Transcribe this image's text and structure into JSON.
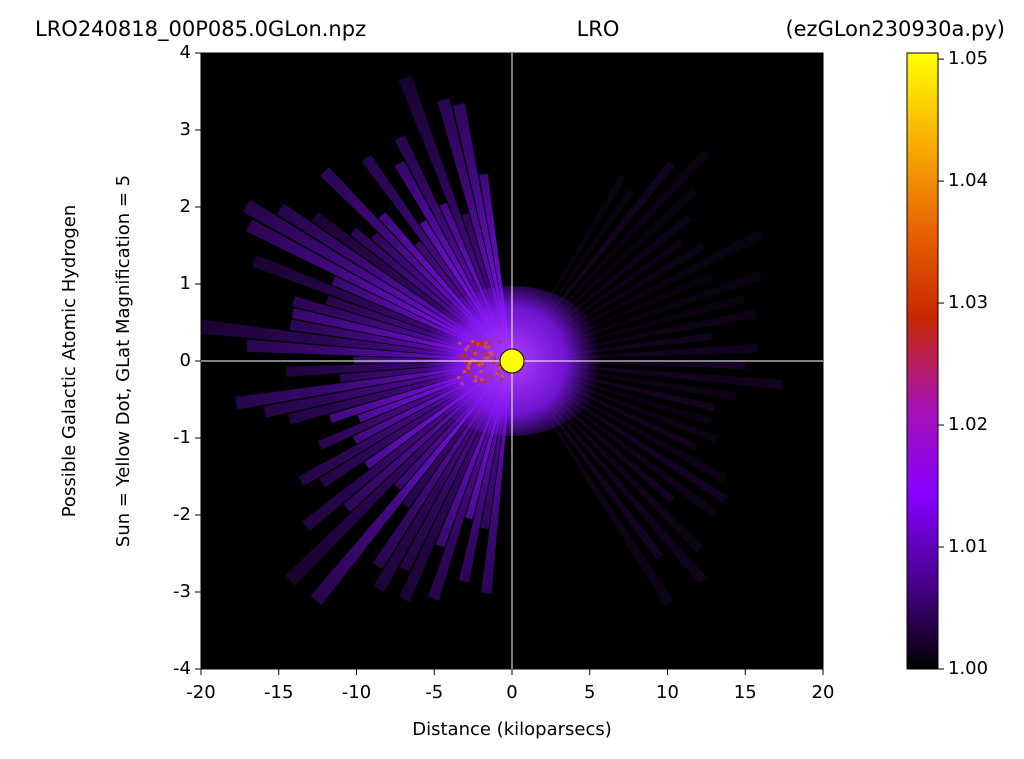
{
  "chart_data": {
    "type": "heatmap",
    "title_left": "LRO240818_00P085.0GLon.npz",
    "title_center": "LRO",
    "title_right": "(ezGLon230930a.py)",
    "xlabel": "Distance (kiloparsecs)",
    "ylabel": "Possible Galactic Atomic Hydrogen",
    "ylabel2": "Sun = Yellow Dot, GLat Magnification = 5",
    "xlim": [
      -20,
      20
    ],
    "xticks": [
      -20,
      -15,
      -10,
      -5,
      0,
      5,
      10,
      15,
      20
    ],
    "ylim": [
      -4,
      4
    ],
    "yticks": [
      -4,
      -3,
      -2,
      -1,
      0,
      1,
      2,
      3,
      4
    ],
    "sun": {
      "x": 0,
      "y": 0,
      "color": "#ffff00"
    },
    "colorbar": {
      "lim": [
        1.0,
        1.0505
      ],
      "ticks": [
        {
          "value": 1.0,
          "label": "1.00"
        },
        1.01,
        1.02,
        1.03,
        1.04,
        1.05
      ],
      "colors": [
        "#000000",
        "#4a0090",
        "#8800ff",
        "#a812b0",
        "#c82800",
        "#e86400",
        "#f8b000",
        "#ffff00"
      ]
    }
  }
}
